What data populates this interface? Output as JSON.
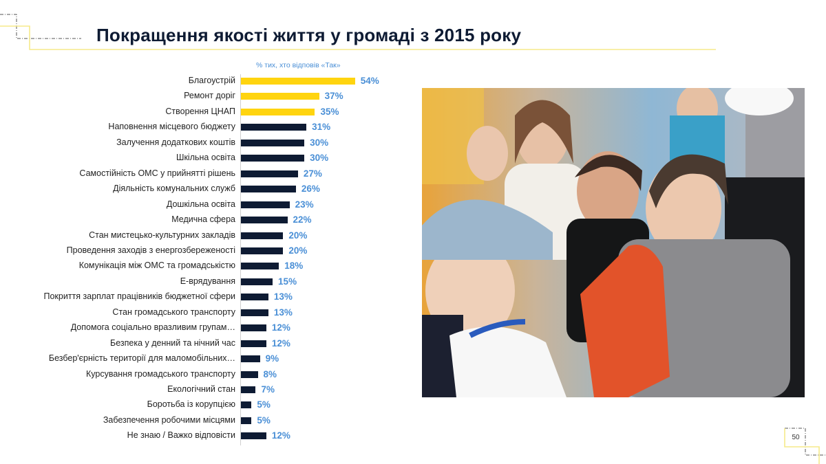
{
  "slide": {
    "title": "Покращення якості життя у громаді з 2015 року",
    "page_number": "50",
    "colors": {
      "title": "#0e1b33",
      "bar_highlight": "#ffd40f",
      "bar_default": "#0e1b33",
      "value_label": "#4a8fd6",
      "accent_line": "#f5ea8a"
    }
  },
  "chart_data": {
    "type": "bar",
    "orientation": "horizontal",
    "title": "Покращення якості життя у громаді з 2015 року",
    "subtitle": "% тих, хто відповів «Так»",
    "xlabel": "",
    "ylabel": "",
    "xlim": [
      0,
      60
    ],
    "grid": false,
    "legend": null,
    "categories": [
      "Благоустрій",
      "Ремонт доріг",
      "Створення ЦНАП",
      "Наповнення місцевого бюджету",
      "Залучення додаткових коштів",
      "Шкільна освіта",
      "Самостійність ОМС у прийнятті рішень",
      "Діяльність комунальних служб",
      "Дошкільна освіта",
      "Медична сфера",
      "Стан мистецько-культурних закладів",
      "Проведення заходів з енергозбереженості",
      "Комунікація між ОМС та громадськістю",
      "Е-врядування",
      "Покриття зарплат працівників бюджетної сфери",
      "Стан громадського транспорту",
      "Допомога соціально вразливим групам…",
      "Безпека у денний та нічний час",
      "Безбер'єрність території для маломобільних…",
      "Курсування громадського транспорту",
      "Екологічний стан",
      "Боротьба із корупцією",
      "Забезпечення робочими місцями",
      "Не знаю / Важко відповісти"
    ],
    "values": [
      54,
      37,
      35,
      31,
      30,
      30,
      27,
      26,
      23,
      22,
      20,
      20,
      18,
      15,
      13,
      13,
      12,
      12,
      9,
      8,
      7,
      5,
      5,
      12
    ],
    "value_labels": [
      "54%",
      "37%",
      "35%",
      "31%",
      "30%",
      "30%",
      "27%",
      "26%",
      "23%",
      "22%",
      "20%",
      "20%",
      "18%",
      "15%",
      "13%",
      "13%",
      "12%",
      "12%",
      "9%",
      "8%",
      "7%",
      "5%",
      "5%",
      "12%"
    ],
    "highlighted": [
      true,
      true,
      true,
      false,
      false,
      false,
      false,
      false,
      false,
      false,
      false,
      false,
      false,
      false,
      false,
      false,
      false,
      false,
      false,
      false,
      false,
      false,
      false,
      false
    ]
  },
  "photo": {
    "description": "Photo of children in a crowd outdoors"
  }
}
